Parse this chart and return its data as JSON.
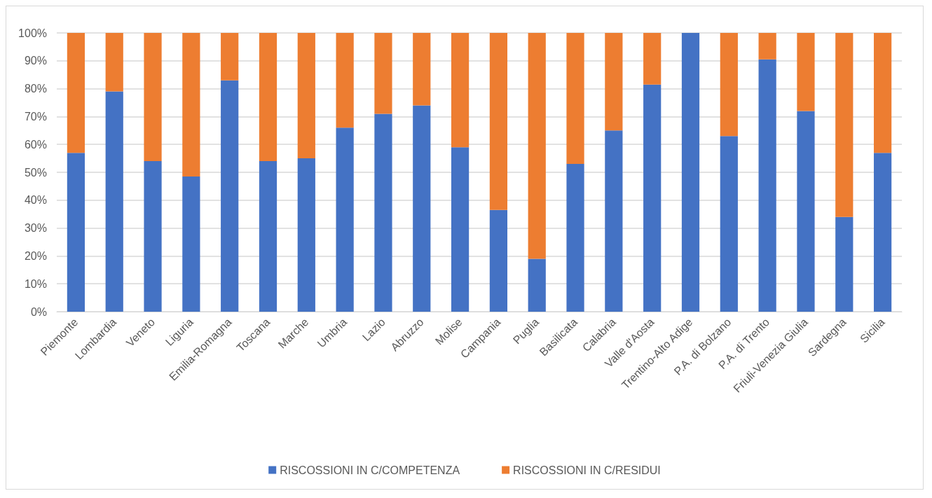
{
  "chart_data": {
    "type": "bar",
    "stacked": true,
    "categories": [
      "Piemonte",
      "Lombardia",
      "Veneto",
      "Liguria",
      "Emilia-Romagna",
      "Toscana",
      "Marche",
      "Umbria",
      "Lazio",
      "Abruzzo",
      "Molise",
      "Campania",
      "Puglia",
      "Basilicata",
      "Calabria",
      "Valle d'Aosta",
      "Trentino-Alto Adige",
      "P.A. di Bolzano",
      "P.A. di Trento",
      "Friuli-Venezia Giulia",
      "Sardegna",
      "Sicilia"
    ],
    "series": [
      {
        "name": "RISCOSSIONI IN C/COMPETENZA",
        "color": "#4472c4",
        "values": [
          57,
          79,
          54,
          48.5,
          83,
          54,
          55,
          66,
          71,
          74,
          59,
          36.5,
          19,
          53,
          65,
          81.5,
          100,
          63,
          90.5,
          72,
          34,
          57
        ]
      },
      {
        "name": "RISCOSSIONI IN C/RESIDUI",
        "color": "#ed7d31",
        "values": [
          43,
          21,
          46,
          51.5,
          17,
          46,
          45,
          34,
          29,
          26,
          41,
          63.5,
          81,
          47,
          35,
          18.5,
          0,
          37,
          9.5,
          28,
          66,
          43
        ]
      }
    ],
    "ylim": [
      0,
      100
    ],
    "yticks": [
      {
        "value": 0,
        "label": "0%"
      },
      {
        "value": 10,
        "label": "10%"
      },
      {
        "value": 20,
        "label": "20%"
      },
      {
        "value": 30,
        "label": "30%"
      },
      {
        "value": 40,
        "label": "40%"
      },
      {
        "value": 50,
        "label": "50%"
      },
      {
        "value": 60,
        "label": "60%"
      },
      {
        "value": 70,
        "label": "70%"
      },
      {
        "value": 80,
        "label": "80%"
      },
      {
        "value": 90,
        "label": "90%"
      },
      {
        "value": 100,
        "label": "100%"
      }
    ],
    "grid": "y",
    "legend": "bottom"
  }
}
